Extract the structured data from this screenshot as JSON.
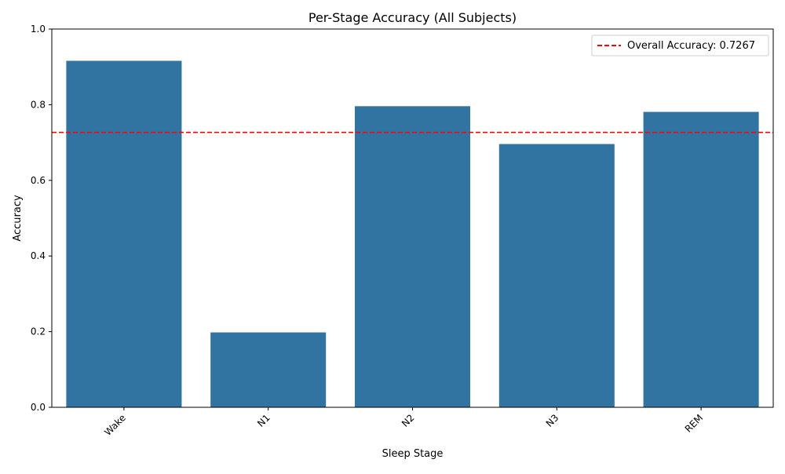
{
  "chart_data": {
    "type": "bar",
    "title": "Per-Stage Accuracy (All Subjects)",
    "xlabel": "Sleep Stage",
    "ylabel": "Accuracy",
    "categories": [
      "Wake",
      "N1",
      "N2",
      "N3",
      "REM"
    ],
    "values": [
      0.916,
      0.198,
      0.796,
      0.696,
      0.781
    ],
    "ylim": [
      0,
      1.0
    ],
    "yticks": [
      "0.0",
      "0.2",
      "0.4",
      "0.6",
      "0.8",
      "1.0"
    ],
    "grid": false,
    "bar_color": "#3274a1",
    "reference_line": {
      "label": "Overall Accuracy: 0.7267",
      "value": 0.7267,
      "color": "#ff0000",
      "style": "dashed"
    },
    "legend": {
      "position": "top-right"
    }
  }
}
